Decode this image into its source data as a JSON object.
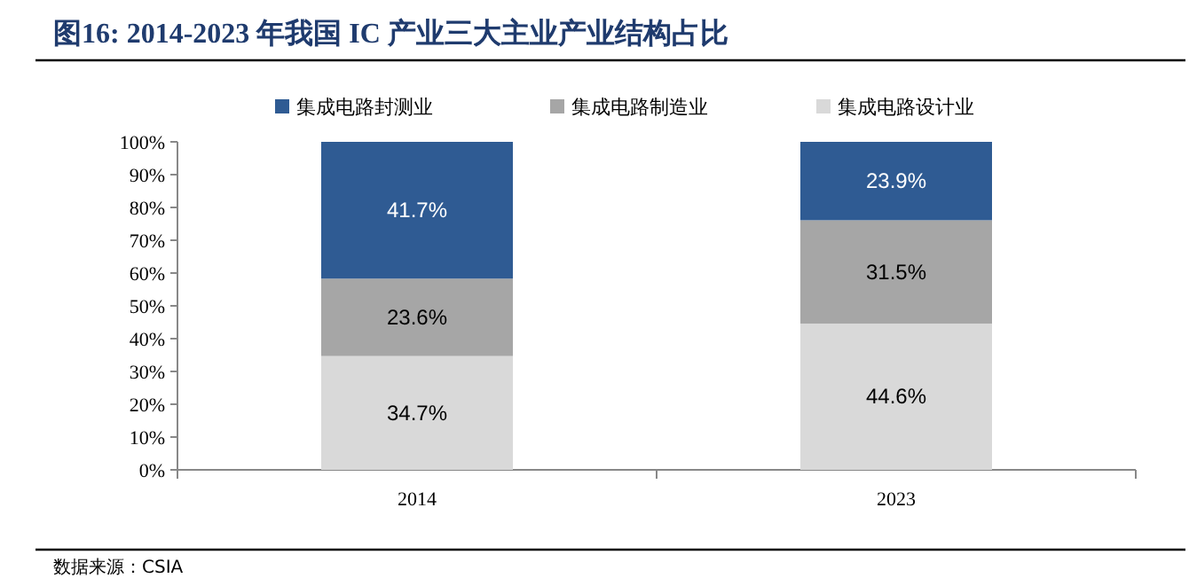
{
  "chart_data": {
    "type": "bar",
    "stacked": true,
    "title": "图16:  2014-2023 年我国 IC 产业三大主业产业结构占比",
    "categories": [
      "2014",
      "2023"
    ],
    "series": [
      {
        "name": "集成电路设计业",
        "color": "#d9d9d9",
        "values": [
          34.7,
          44.6
        ]
      },
      {
        "name": "集成电路制造业",
        "color": "#a6a6a6",
        "values": [
          23.6,
          31.5
        ]
      },
      {
        "name": "集成电路封测业",
        "color": "#2f5b93",
        "values": [
          41.7,
          23.9
        ]
      }
    ],
    "value_labels": [
      [
        "34.7%",
        "44.6%"
      ],
      [
        "23.6%",
        "31.5%"
      ],
      [
        "41.7%",
        "23.9%"
      ]
    ],
    "ylim": [
      0,
      100
    ],
    "yticks": [
      {
        "value": 0,
        "label": "0%"
      },
      {
        "value": 10,
        "label": "10%"
      },
      {
        "value": 20,
        "label": "20%"
      },
      {
        "value": 30,
        "label": "30%"
      },
      {
        "value": 40,
        "label": "40%"
      },
      {
        "value": 50,
        "label": "50%"
      },
      {
        "value": 60,
        "label": "60%"
      },
      {
        "value": 70,
        "label": "70%"
      },
      {
        "value": 80,
        "label": "80%"
      },
      {
        "value": 90,
        "label": "90%"
      },
      {
        "value": 100,
        "label": "100%"
      }
    ],
    "legend": "top",
    "grid": false,
    "annotations": [
      "数据来源：CSIA"
    ]
  }
}
